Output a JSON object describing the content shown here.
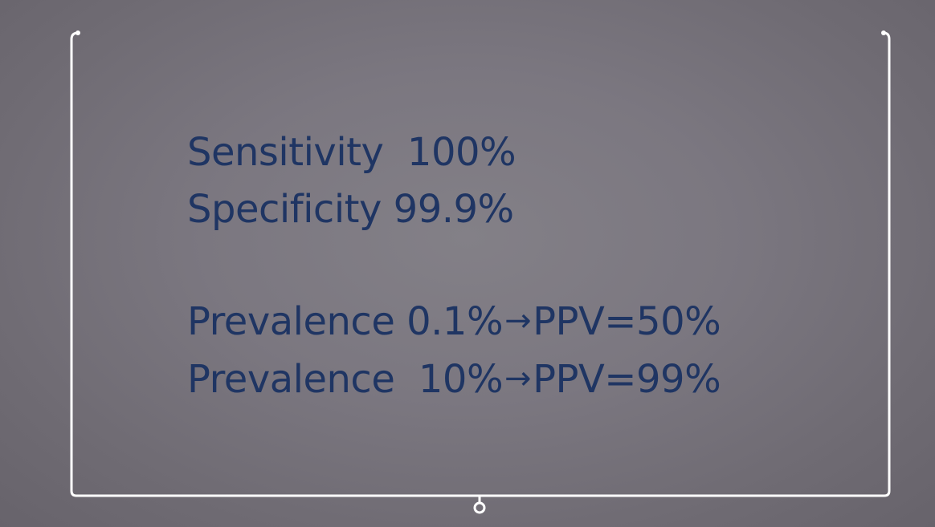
{
  "slide": {
    "lines": [
      {
        "label": "Sensitivity",
        "value": "100%"
      },
      {
        "label": "Specificity",
        "value": "99.9%"
      }
    ],
    "prevalence_rows": [
      {
        "label": "Prevalence",
        "prevalence": "0.1%",
        "arrow": "→",
        "result": "PPV=50%"
      },
      {
        "label": "Prevalence",
        "prevalence": "10%",
        "arrow": "→",
        "result": "PPV=99%"
      }
    ]
  },
  "colors": {
    "text": "#1f3563",
    "frame_line": "#ffffff",
    "background": "#7b7780"
  }
}
